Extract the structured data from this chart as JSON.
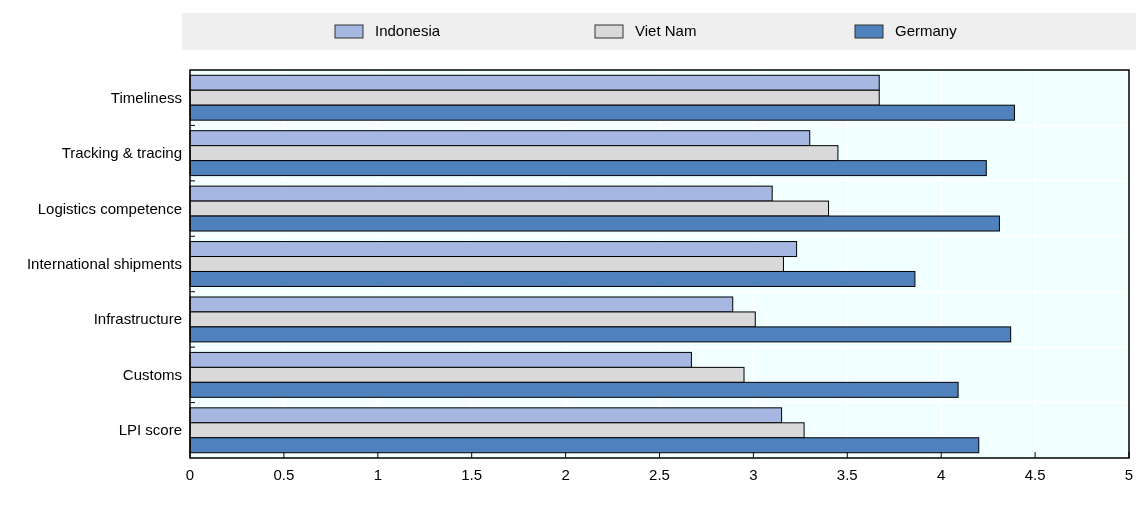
{
  "chart_data": {
    "type": "bar",
    "orientation": "horizontal",
    "categories": [
      "Timeliness",
      "Tracking & tracing",
      "Logistics competence",
      "International shipments",
      "Infrastructure",
      "Customs",
      "LPI score"
    ],
    "series": [
      {
        "name": "Indonesia",
        "color": "#a6b8e2",
        "values": [
          3.67,
          3.3,
          3.1,
          3.23,
          2.89,
          2.67,
          3.15
        ]
      },
      {
        "name": "Viet Nam",
        "color": "#d9d9d9",
        "values": [
          3.67,
          3.45,
          3.4,
          3.16,
          3.01,
          2.95,
          3.27
        ]
      },
      {
        "name": "Germany",
        "color": "#4f81bd",
        "values": [
          4.39,
          4.24,
          4.31,
          3.86,
          4.37,
          4.09,
          4.2
        ]
      }
    ],
    "xlim": [
      0,
      5
    ],
    "xticks": [
      0,
      0.5,
      1,
      1.5,
      2,
      2.5,
      3,
      3.5,
      4,
      4.5,
      5
    ],
    "grid": true,
    "legend": "top"
  }
}
